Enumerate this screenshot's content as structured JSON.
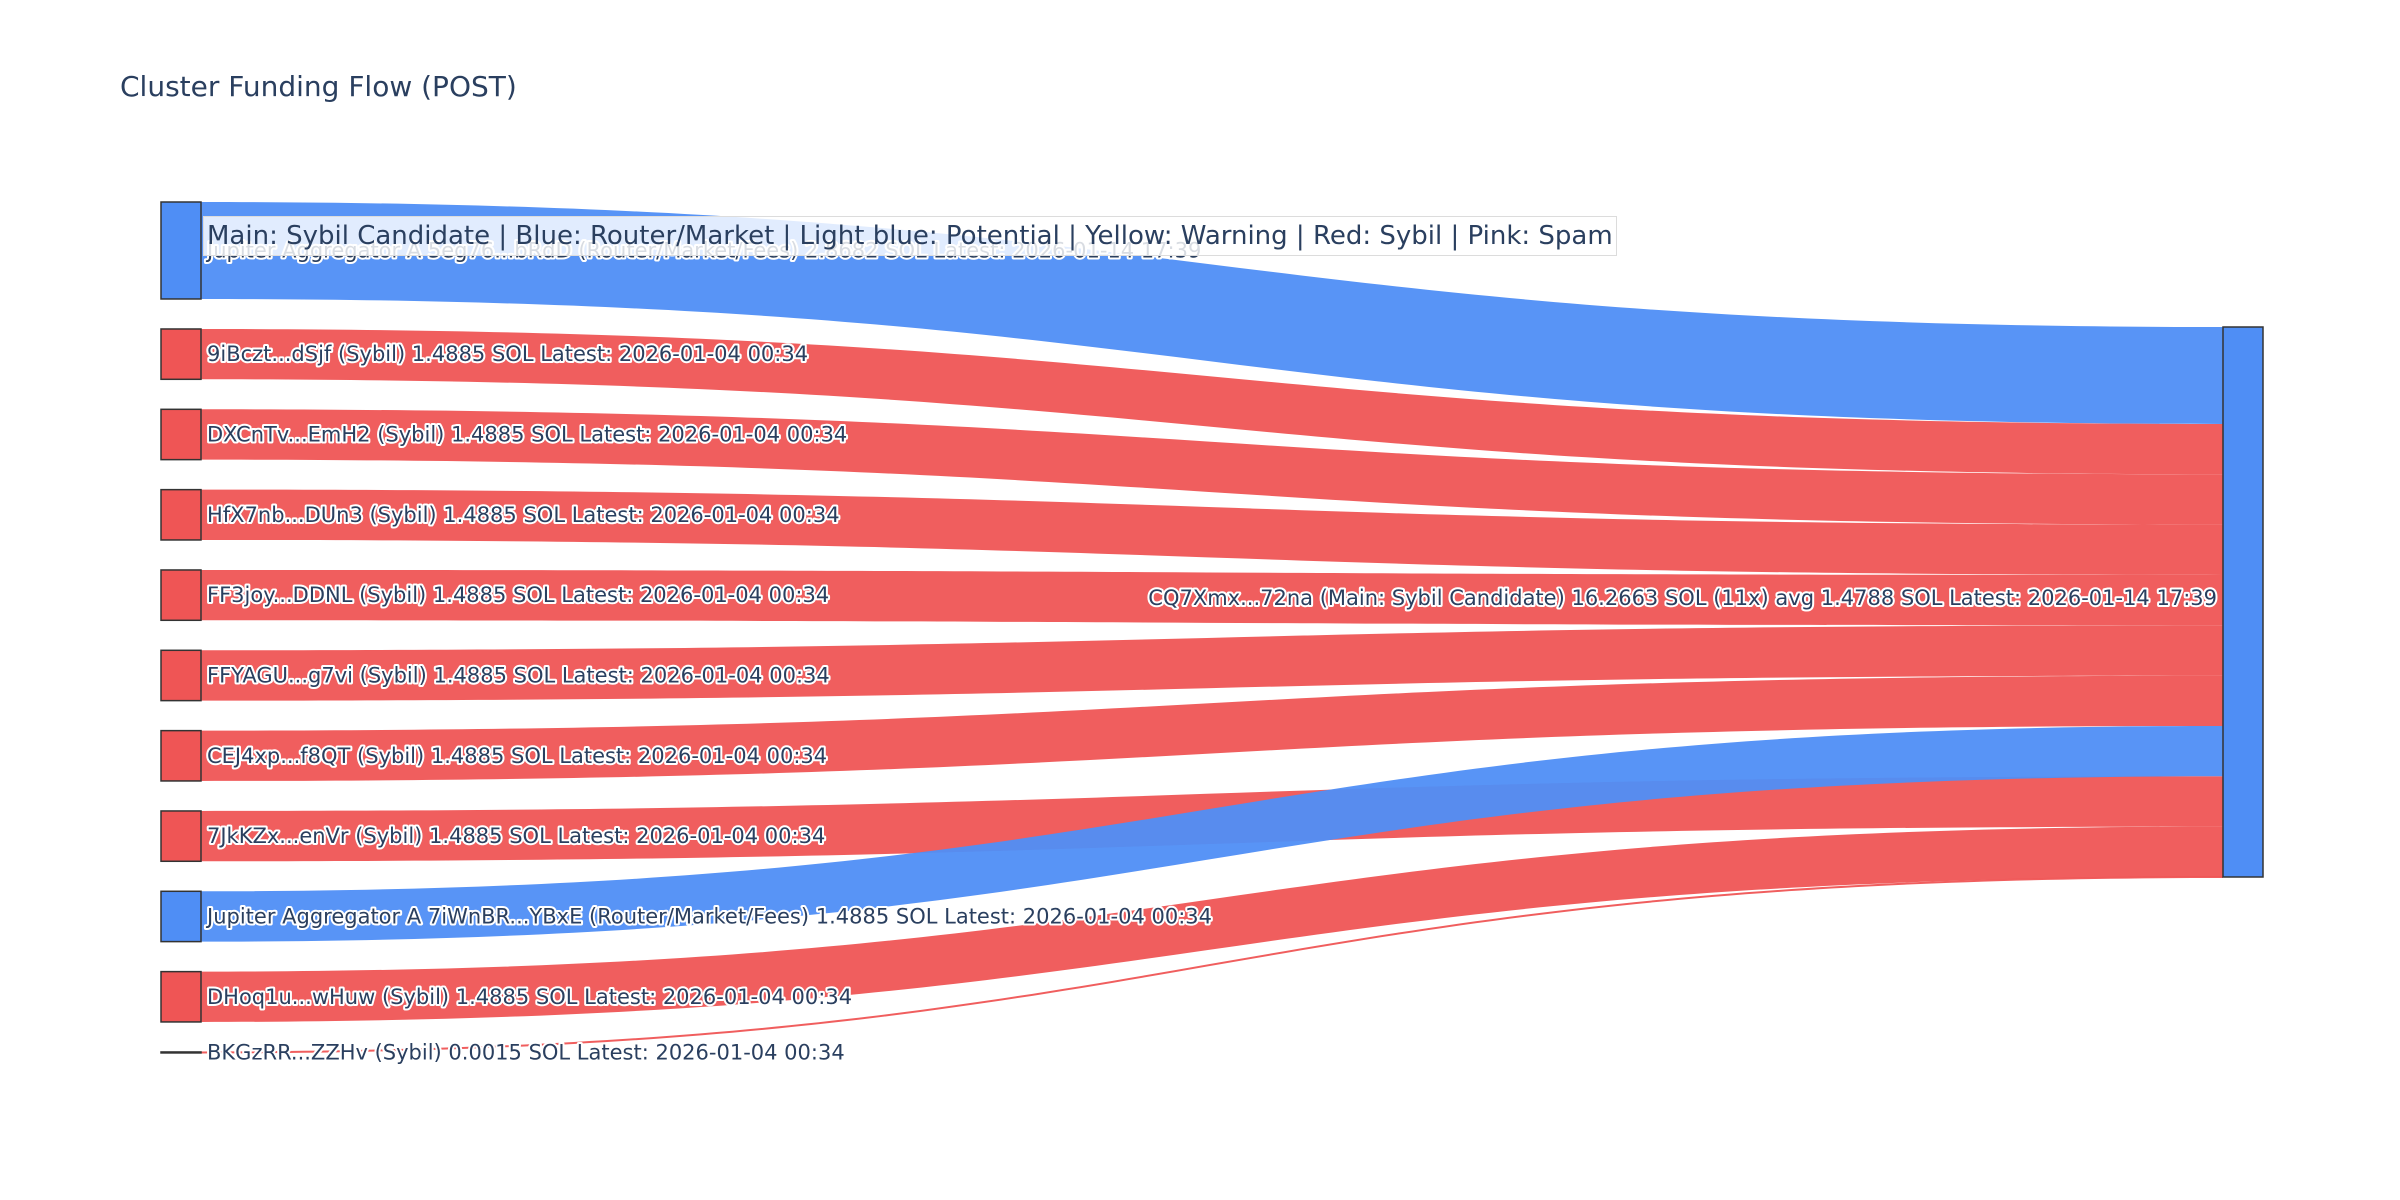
{
  "chart_data": {
    "type": "sankey",
    "title": "Cluster Funding Flow (POST)",
    "legend_note": "Main: Sybil Candidate  |  Blue: Router/Market | Light blue: Potential | Yellow: Warning | Red: Sybil | Pink: Spam",
    "colors": {
      "router": "#4f8ef5",
      "sybil": "#ef5555"
    },
    "target": {
      "label": "CQ7Xmx...72na (Main: Sybil Candidate) 16.2663 SOL (11x) avg 1.4788 SOL Latest: 2026-01-14 17:39",
      "value": 16.2663,
      "color": "#4f8ef5"
    },
    "sources": [
      {
        "label": "Jupiter Aggregator A 5eg76...bRdD (Router/Market/Fees) 2.8682 SOL Latest: 2026-01-14 17:39",
        "value": 2.8682,
        "category": "router"
      },
      {
        "label": "9iBczt...dSjf (Sybil) 1.4885 SOL Latest: 2026-01-04 00:34",
        "value": 1.4885,
        "category": "sybil"
      },
      {
        "label": "DXCnTv...EmH2 (Sybil) 1.4885 SOL Latest: 2026-01-04 00:34",
        "value": 1.4885,
        "category": "sybil"
      },
      {
        "label": "HfX7nb...DUn3 (Sybil) 1.4885 SOL Latest: 2026-01-04 00:34",
        "value": 1.4885,
        "category": "sybil"
      },
      {
        "label": "FF3joy...DDNL (Sybil) 1.4885 SOL Latest: 2026-01-04 00:34",
        "value": 1.4885,
        "category": "sybil"
      },
      {
        "label": "FFYAGU...g7vi (Sybil) 1.4885 SOL Latest: 2026-01-04 00:34",
        "value": 1.4885,
        "category": "sybil"
      },
      {
        "label": "CEJ4xp...f8QT (Sybil) 1.4885 SOL Latest: 2026-01-04 00:34",
        "value": 1.4885,
        "category": "sybil"
      },
      {
        "label": "7JkKZx...enVr (Sybil) 1.4885 SOL Latest: 2026-01-04 00:34",
        "value": 1.4885,
        "category": "sybil"
      },
      {
        "label": "Jupiter Aggregator A 7iWnBR...YBxE (Router/Market/Fees) 1.4885 SOL Latest: 2026-01-04 00:34",
        "value": 1.4885,
        "category": "router"
      },
      {
        "label": "DHoq1u...wHuw (Sybil) 1.4885 SOL Latest: 2026-01-04 00:34",
        "value": 1.4885,
        "category": "sybil"
      },
      {
        "label": "BKGzRR...ZZHv (Sybil) 0.0015 SOL Latest: 2026-01-04 00:34",
        "value": 0.0015,
        "category": "sybil"
      }
    ],
    "target_order": [
      0,
      1,
      2,
      3,
      4,
      5,
      6,
      8,
      7,
      9,
      10
    ]
  }
}
